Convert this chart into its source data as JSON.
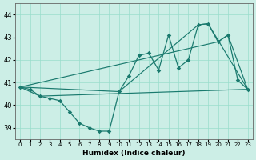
{
  "xlabel": "Humidex (Indice chaleur)",
  "bg_color": "#cceee6",
  "line_color": "#1a7a6e",
  "grid_color": "#99ddcc",
  "xlim": [
    -0.5,
    23.5
  ],
  "ylim": [
    38.5,
    44.5
  ],
  "yticks": [
    39,
    40,
    41,
    42,
    43,
    44
  ],
  "xticks": [
    0,
    1,
    2,
    3,
    4,
    5,
    6,
    7,
    8,
    9,
    10,
    11,
    12,
    13,
    14,
    15,
    16,
    17,
    18,
    19,
    20,
    21,
    22,
    23
  ],
  "main_x": [
    0,
    1,
    2,
    3,
    4,
    5,
    6,
    7,
    8,
    9,
    10,
    11,
    12,
    13,
    14,
    15,
    16,
    17,
    18,
    19,
    20,
    21,
    22,
    23
  ],
  "main_y": [
    40.8,
    40.7,
    40.4,
    40.3,
    40.2,
    39.7,
    39.2,
    39.0,
    38.85,
    38.85,
    40.6,
    41.3,
    42.2,
    42.3,
    41.55,
    43.1,
    41.65,
    42.0,
    43.55,
    43.6,
    42.8,
    43.1,
    41.1,
    40.7
  ],
  "line2_x": [
    0,
    2,
    23
  ],
  "line2_y": [
    40.8,
    40.4,
    40.7
  ],
  "line3_x": [
    0,
    10,
    18,
    19,
    23
  ],
  "line3_y": [
    40.8,
    40.6,
    43.55,
    43.6,
    40.7
  ],
  "line4_x": [
    0,
    20,
    21,
    23
  ],
  "line4_y": [
    40.8,
    42.8,
    43.1,
    40.7
  ]
}
